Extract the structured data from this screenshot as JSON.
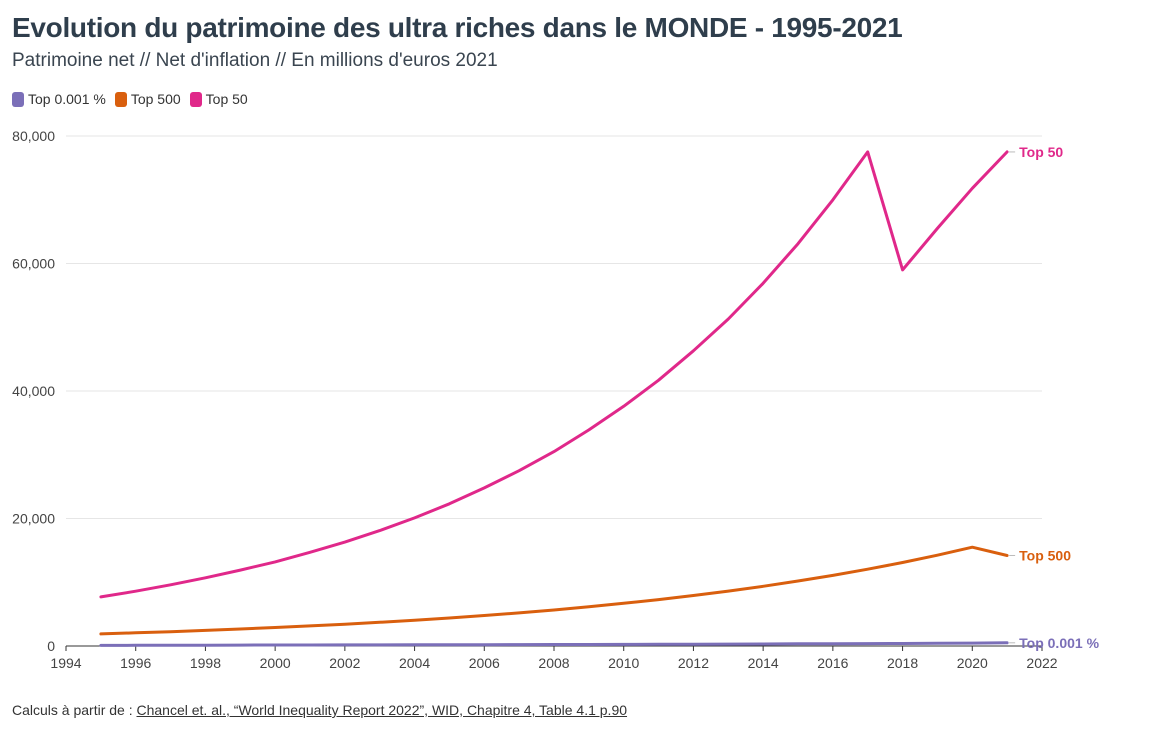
{
  "title": "Evolution du patrimoine des ultra riches dans le MONDE - 1995-2021",
  "subtitle": "Patrimoine net // Net d'inflation // En millions d'euros 2021",
  "footer": {
    "prefix": "Calculs à partir de : ",
    "link_text": "Chancel et. al., “World Inequality Report 2022”, WID, Chapitre 4, Table 4.1 p.90"
  },
  "chart_data": {
    "type": "line",
    "x": [
      1995,
      1996,
      1997,
      1998,
      1999,
      2000,
      2001,
      2002,
      2003,
      2004,
      2005,
      2006,
      2007,
      2008,
      2009,
      2010,
      2011,
      2012,
      2013,
      2014,
      2015,
      2016,
      2017,
      2018,
      2019,
      2020,
      2021
    ],
    "series": [
      {
        "name": "Top 0.001 %",
        "end_label": "Top 0.001 %",
        "color": "#7b6fb8",
        "values": [
          100,
          110,
          120,
          130,
          140,
          150,
          160,
          170,
          180,
          190,
          200,
          210,
          220,
          230,
          240,
          250,
          260,
          280,
          300,
          320,
          340,
          360,
          380,
          400,
          430,
          460,
          500
        ]
      },
      {
        "name": "Top 500",
        "end_label": "Top 500",
        "color": "#d95f0e",
        "values": [
          1900,
          2070,
          2250,
          2450,
          2660,
          2900,
          3150,
          3420,
          3720,
          4050,
          4400,
          4780,
          5200,
          5650,
          6150,
          6700,
          7280,
          7920,
          8610,
          9370,
          10190,
          11080,
          12050,
          13100,
          14250,
          15500,
          14200
        ]
      },
      {
        "name": "Top 50",
        "end_label": "Top 50",
        "color": "#e0288a",
        "values": [
          7700,
          8600,
          9600,
          10700,
          11900,
          13200,
          14700,
          16300,
          18100,
          20100,
          22300,
          24800,
          27500,
          30500,
          33900,
          37600,
          41700,
          46300,
          51300,
          56900,
          63100,
          70000,
          77500,
          59000,
          65500,
          71800,
          77500
        ]
      }
    ],
    "xlim": [
      1994,
      2022
    ],
    "x_ticks": [
      1994,
      1996,
      1998,
      2000,
      2002,
      2004,
      2006,
      2008,
      2010,
      2012,
      2014,
      2016,
      2018,
      2020,
      2022
    ],
    "ylim": [
      0,
      80000
    ],
    "y_ticks": [
      0,
      20000,
      40000,
      60000,
      80000
    ],
    "y_tick_labels": [
      "0",
      "20,000",
      "40,000",
      "60,000",
      "80,000"
    ],
    "grid": true,
    "legend": "top-left"
  }
}
